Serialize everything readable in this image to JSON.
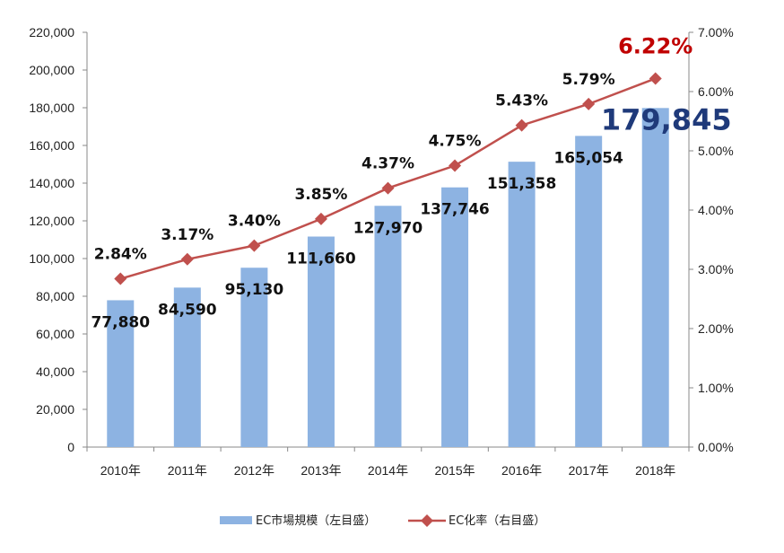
{
  "chart_data": {
    "type": "bar+line",
    "categories": [
      "2010年",
      "2011年",
      "2012年",
      "2013年",
      "2014年",
      "2015年",
      "2016年",
      "2017年",
      "2018年"
    ],
    "series": [
      {
        "name": "EC市場規模（左目盛）",
        "type": "bar",
        "axis": "left",
        "color": "#8DB3E2",
        "values": [
          77880,
          84590,
          95130,
          111660,
          127970,
          137746,
          151358,
          165054,
          179845
        ],
        "labels": [
          "77,880",
          "84,590",
          "95,130",
          "111,660",
          "127,970",
          "137,746",
          "151,358",
          "165,054",
          "179,845"
        ]
      },
      {
        "name": "EC化率（右目盛）",
        "type": "line",
        "axis": "right",
        "color": "#C0504D",
        "marker": "diamond",
        "values": [
          2.84,
          3.17,
          3.4,
          3.85,
          4.37,
          4.75,
          5.43,
          5.79,
          6.22
        ],
        "labels": [
          "2.84%",
          "3.17%",
          "3.40%",
          "3.85%",
          "4.37%",
          "4.75%",
          "5.43%",
          "5.79%",
          "6.22%"
        ]
      }
    ],
    "left_axis": {
      "ylim": [
        0,
        220000
      ],
      "ticks": [
        0,
        20000,
        40000,
        60000,
        80000,
        100000,
        120000,
        140000,
        160000,
        180000,
        200000,
        220000
      ],
      "tick_labels": [
        "0",
        "20,000",
        "40,000",
        "60,000",
        "80,000",
        "100,000",
        "120,000",
        "140,000",
        "160,000",
        "180,000",
        "200,000",
        "220,000"
      ]
    },
    "right_axis": {
      "ylim": [
        0,
        7
      ],
      "ticks": [
        0,
        1,
        2,
        3,
        4,
        5,
        6,
        7
      ],
      "tick_labels": [
        "0.00%",
        "1.00%",
        "2.00%",
        "3.00%",
        "4.00%",
        "5.00%",
        "6.00%",
        "7.00%"
      ]
    },
    "highlight": {
      "bar_label_color": "#1F3A7A",
      "rate_label_color": "#C00000"
    },
    "grid": false,
    "legend_position": "bottom"
  }
}
